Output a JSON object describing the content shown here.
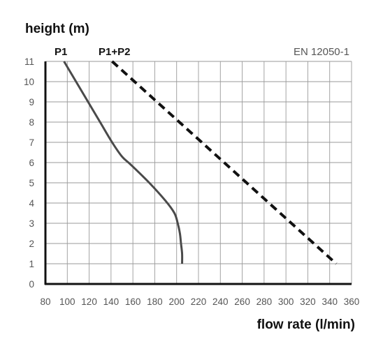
{
  "chart_data": {
    "type": "line",
    "ylabel": "height (m)",
    "xlabel": "flow rate (l/min)",
    "standard": "EN 12050-1",
    "xlim": [
      80,
      360
    ],
    "ylim": [
      0,
      11
    ],
    "x_ticks": [
      80,
      100,
      120,
      140,
      160,
      180,
      200,
      220,
      240,
      260,
      280,
      300,
      320,
      340,
      360
    ],
    "y_ticks": [
      0,
      1,
      2,
      3,
      4,
      5,
      6,
      7,
      8,
      9,
      10,
      11
    ],
    "grid": true,
    "series": [
      {
        "name": "P1",
        "line_style": "solid",
        "color": "#4a4a4a",
        "points": [
          [
            97,
            11
          ],
          [
            108,
            10
          ],
          [
            119,
            9
          ],
          [
            130,
            8
          ],
          [
            141,
            7
          ],
          [
            150,
            6.3
          ],
          [
            158,
            5.9
          ],
          [
            175,
            5
          ],
          [
            190,
            4.1
          ],
          [
            198,
            3.5
          ],
          [
            201,
            3
          ],
          [
            203,
            2.5
          ],
          [
            204,
            2
          ],
          [
            205,
            1.5
          ],
          [
            205,
            1
          ]
        ]
      },
      {
        "name": "P1+P2",
        "line_style": "dashed",
        "color": "#111111",
        "points": [
          [
            141,
            11
          ],
          [
            346,
            1
          ]
        ]
      }
    ]
  }
}
